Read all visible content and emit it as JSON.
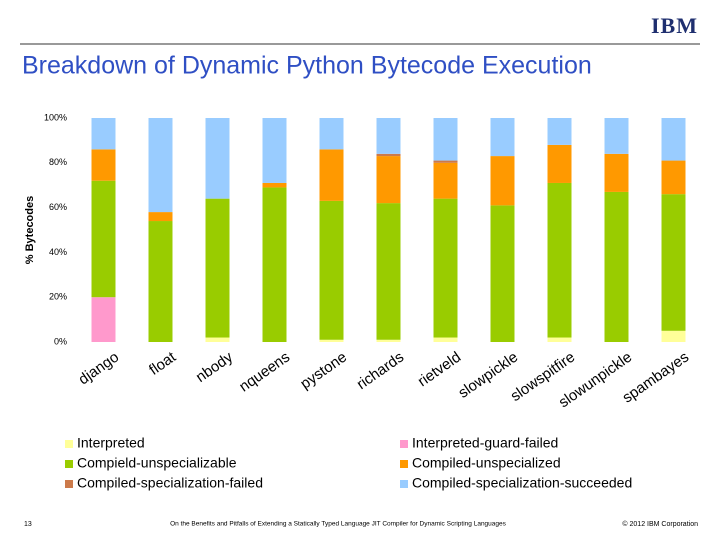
{
  "slide": {
    "logo": "IBM",
    "page_number": "13",
    "footer": "On the Benefits and Pitfalls of Extending a Statically Typed Language JIT Compiler for Dynamic Scripting Languages",
    "copyright": "© 2012 IBM Corporation"
  },
  "chart_data": {
    "type": "stacked_bar",
    "title": "Breakdown of Dynamic Python Bytecode Execution",
    "y_label": "% Bytecodes",
    "categories": [
      "django",
      "float",
      "nbody",
      "nqueens",
      "pystone",
      "richards",
      "rietveld",
      "slowpickle",
      "slowspitfire",
      "slowunpickle",
      "spambayes"
    ],
    "series": [
      {
        "name": "Interpreted",
        "color": "#ffff99",
        "values": [
          0,
          0,
          2,
          0,
          1,
          1,
          2,
          0,
          2,
          0,
          5
        ]
      },
      {
        "name": "Interpreted-guard-failed",
        "color": "#ff99cc",
        "values": [
          20,
          0,
          0,
          0,
          0,
          0,
          0,
          0,
          0,
          0,
          0
        ]
      },
      {
        "name": "Compield-unspecializable",
        "color": "#99cc00",
        "values": [
          52,
          54,
          62,
          69,
          62,
          61,
          62,
          61,
          69,
          67,
          61
        ]
      },
      {
        "name": "Compiled-unspecialized",
        "color": "#ff9900",
        "values": [
          14,
          4,
          0,
          2,
          23,
          21,
          16,
          22,
          17,
          17,
          15
        ]
      },
      {
        "name": "Compiled-specialization-failed",
        "color": "#cc7a4a",
        "values": [
          0,
          0,
          0,
          0,
          0,
          1,
          1,
          0,
          0,
          0,
          0
        ]
      },
      {
        "name": "Compiled-specialization-succeeded",
        "color": "#99ccff",
        "values": [
          14,
          42,
          36,
          29,
          14,
          16,
          19,
          17,
          12,
          16,
          19
        ]
      }
    ],
    "ylim": [
      0,
      100
    ],
    "yticks": [
      {
        "value": 0,
        "label": "0%"
      },
      {
        "value": 20,
        "label": "20%"
      },
      {
        "value": 40,
        "label": "40%"
      },
      {
        "value": 60,
        "label": "60%"
      },
      {
        "value": 80,
        "label": "80%"
      },
      {
        "value": 100,
        "label": "100%"
      }
    ],
    "grid": false
  }
}
